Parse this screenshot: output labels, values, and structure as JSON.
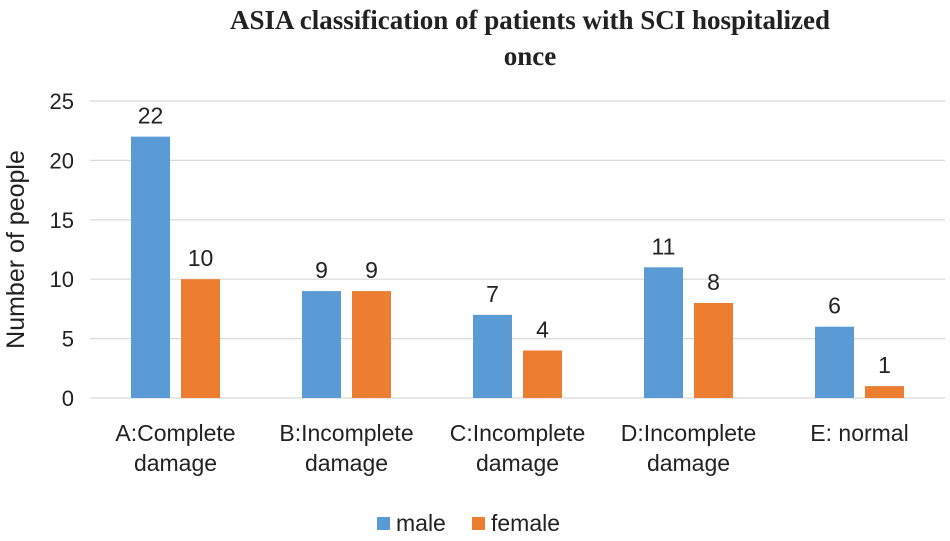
{
  "chart_data": {
    "type": "bar",
    "title_lines": [
      "ASIA  classification of  patients with SCI hospitalized",
      "once"
    ],
    "ylabel": "Number of people",
    "xlabel": "",
    "ylim": [
      0,
      25
    ],
    "yticks": [
      0,
      5,
      10,
      15,
      20,
      25
    ],
    "grid": true,
    "legend_position": "bottom",
    "categories": [
      [
        "A:Complete",
        "damage"
      ],
      [
        "B:Incomplete",
        "damage"
      ],
      [
        "C:Incomplete",
        "damage"
      ],
      [
        "D:Incomplete",
        "damage"
      ],
      [
        "E: normal"
      ]
    ],
    "series": [
      {
        "name": "male",
        "color": "#5b9bd5",
        "values": [
          22,
          9,
          7,
          11,
          6
        ]
      },
      {
        "name": "female",
        "color": "#ed7d31",
        "values": [
          10,
          9,
          4,
          8,
          1
        ]
      }
    ]
  }
}
